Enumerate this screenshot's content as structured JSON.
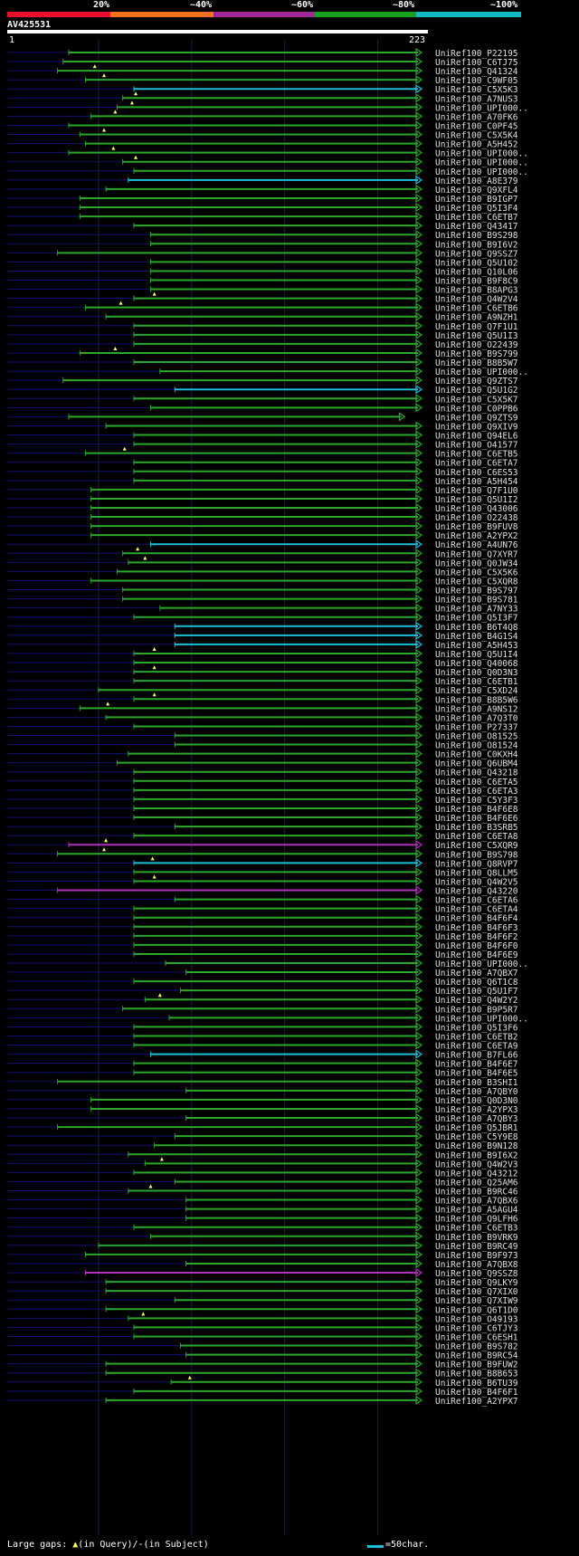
{
  "query": {
    "name": "AV425531",
    "start_label": "1",
    "end_label": "223"
  },
  "percent_labels": [
    "20%",
    "~40%",
    "~60%",
    "~80%",
    "~100%"
  ],
  "colors": {
    "20%": "#e8102c",
    "40%": "#f07020",
    "60%": "#a02898",
    "80%": "#18a018",
    "100%": "#10b8c0",
    "hit_green": "#2aa82a",
    "hit_cyan": "#19c0d8",
    "hit_magenta": "#b030b8",
    "unaligned": "#101070",
    "label": "#e0e0e0"
  },
  "footer": {
    "large_gaps": "Large gaps:",
    "query_gap": "(in Query)/",
    "subject_gap": "-(in Subject)",
    "scale": "=50char."
  },
  "chart_data": {
    "type": "alignment",
    "query_length": 223,
    "hits": [
      {
        "name": "UniRef100_P22195",
        "s": 34,
        "c": "g",
        "m": []
      },
      {
        "name": "UniRef100_C6TJ75",
        "s": 31,
        "c": "g",
        "m": []
      },
      {
        "name": "UniRef100_Q41324",
        "s": 28,
        "c": "g",
        "m": [
          48
        ]
      },
      {
        "name": "UniRef100_C9WF05",
        "s": 43,
        "c": "g",
        "m": [
          53
        ]
      },
      {
        "name": "UniRef100_C5X5K3",
        "s": 69,
        "c": "c",
        "m": []
      },
      {
        "name": "UniRef100_A7NUS3",
        "s": 63,
        "c": "g",
        "m": [
          70
        ]
      },
      {
        "name": "UniRef100_UPI000..",
        "s": 60,
        "c": "g",
        "m": [
          68
        ]
      },
      {
        "name": "UniRef100_A70FK6",
        "s": 46,
        "c": "g",
        "m": [
          59
        ]
      },
      {
        "name": "UniRef100_C0PF45",
        "s": 34,
        "c": "g",
        "m": []
      },
      {
        "name": "UniRef100_C5X5K4",
        "s": 40,
        "c": "g",
        "m": [
          53
        ]
      },
      {
        "name": "UniRef100_A5H452",
        "s": 43,
        "c": "g",
        "m": []
      },
      {
        "name": "UniRef100_UPI000..",
        "s": 34,
        "c": "g",
        "m": [
          58
        ]
      },
      {
        "name": "UniRef100_UPI000..",
        "s": 63,
        "c": "g",
        "m": [
          70
        ]
      },
      {
        "name": "UniRef100_UPI000..",
        "s": 69,
        "c": "g",
        "m": []
      },
      {
        "name": "UniRef100_A8E379",
        "s": 66,
        "c": "c",
        "m": []
      },
      {
        "name": "UniRef100_Q9XFL4",
        "s": 54,
        "c": "g",
        "m": []
      },
      {
        "name": "UniRef100_B9IGP7",
        "s": 40,
        "c": "g",
        "m": []
      },
      {
        "name": "UniRef100_Q5I3F4",
        "s": 40,
        "c": "g",
        "m": []
      },
      {
        "name": "UniRef100_C6ETB7",
        "s": 40,
        "c": "g",
        "m": []
      },
      {
        "name": "UniRef100_Q43417",
        "s": 69,
        "c": "g",
        "m": []
      },
      {
        "name": "UniRef100_B9S298",
        "s": 78,
        "c": "g",
        "m": []
      },
      {
        "name": "UniRef100_B9I6V2",
        "s": 78,
        "c": "g",
        "m": []
      },
      {
        "name": "UniRef100_Q9SSZ7",
        "s": 28,
        "c": "g",
        "m": []
      },
      {
        "name": "UniRef100_Q5U102",
        "s": 78,
        "c": "g",
        "m": []
      },
      {
        "name": "UniRef100_Q10L06",
        "s": 78,
        "c": "g",
        "m": []
      },
      {
        "name": "UniRef100_B9F8C9",
        "s": 78,
        "c": "g",
        "m": []
      },
      {
        "name": "UniRef100_B8APG3",
        "s": 78,
        "c": "g",
        "m": []
      },
      {
        "name": "UniRef100_Q4W2V4",
        "s": 69,
        "c": "g",
        "m": [
          80
        ]
      },
      {
        "name": "UniRef100_C6ETB6",
        "s": 43,
        "c": "g",
        "m": [
          62
        ]
      },
      {
        "name": "UniRef100_A9NZH1",
        "s": 54,
        "c": "g",
        "m": []
      },
      {
        "name": "UniRef100_Q7F1U1",
        "s": 69,
        "c": "g",
        "m": []
      },
      {
        "name": "UniRef100_Q5U1I3",
        "s": 69,
        "c": "g",
        "m": []
      },
      {
        "name": "UniRef100_O22439",
        "s": 69,
        "c": "g",
        "m": []
      },
      {
        "name": "UniRef100_B9S799",
        "s": 40,
        "c": "g",
        "m": [
          59
        ]
      },
      {
        "name": "UniRef100_B8B5W7",
        "s": 69,
        "c": "g",
        "m": []
      },
      {
        "name": "UniRef100_UPI000..",
        "s": 83,
        "c": "g",
        "m": []
      },
      {
        "name": "UniRef100_Q9ZTS7",
        "s": 31,
        "c": "g",
        "m": []
      },
      {
        "name": "UniRef100_Q5U1G2",
        "s": 91,
        "c": "c",
        "m": []
      },
      {
        "name": "UniRef100_C5X5K7",
        "s": 69,
        "c": "g",
        "m": []
      },
      {
        "name": "UniRef100_C0PPB6",
        "s": 78,
        "c": "g",
        "m": []
      },
      {
        "name": "UniRef100_Q9ZTS9",
        "s": 34,
        "c": "g",
        "m": [],
        "e": 214
      },
      {
        "name": "UniRef100_Q9XIV9",
        "s": 54,
        "c": "g",
        "m": []
      },
      {
        "name": "UniRef100_Q94EL6",
        "s": 69,
        "c": "g",
        "m": []
      },
      {
        "name": "UniRef100_O41577",
        "s": 69,
        "c": "g",
        "m": []
      },
      {
        "name": "UniRef100_C6ETB5",
        "s": 43,
        "c": "g",
        "m": [
          64
        ]
      },
      {
        "name": "UniRef100_C6ETA7",
        "s": 69,
        "c": "g",
        "m": []
      },
      {
        "name": "UniRef100_C6ES53",
        "s": 69,
        "c": "g",
        "m": []
      },
      {
        "name": "UniRef100_A5H454",
        "s": 69,
        "c": "g",
        "m": []
      },
      {
        "name": "UniRef100_Q7F1U0",
        "s": 46,
        "c": "g",
        "m": []
      },
      {
        "name": "UniRef100_Q5U1I2",
        "s": 46,
        "c": "g",
        "m": []
      },
      {
        "name": "UniRef100_Q43006",
        "s": 46,
        "c": "g",
        "m": []
      },
      {
        "name": "UniRef100_O22438",
        "s": 46,
        "c": "g",
        "m": []
      },
      {
        "name": "UniRef100_B9FUV8",
        "s": 46,
        "c": "g",
        "m": []
      },
      {
        "name": "UniRef100_A2YPX2",
        "s": 46,
        "c": "g",
        "m": []
      },
      {
        "name": "UniRef100_A4UN76",
        "s": 78,
        "c": "c",
        "m": []
      },
      {
        "name": "UniRef100_Q7XYR7",
        "s": 63,
        "c": "g",
        "m": [
          71
        ]
      },
      {
        "name": "UniRef100_Q0JW34",
        "s": 66,
        "c": "g",
        "m": [
          75
        ]
      },
      {
        "name": "UniRef100_C5X5K6",
        "s": 60,
        "c": "g",
        "m": []
      },
      {
        "name": "UniRef100_C5XQR8",
        "s": 46,
        "c": "g",
        "m": []
      },
      {
        "name": "UniRef100_B9S797",
        "s": 63,
        "c": "g",
        "m": []
      },
      {
        "name": "UniRef100_B9S781",
        "s": 63,
        "c": "g",
        "m": []
      },
      {
        "name": "UniRef100_A7NY33",
        "s": 83,
        "c": "g",
        "m": []
      },
      {
        "name": "UniRef100_Q5I3F7",
        "s": 69,
        "c": "g",
        "m": []
      },
      {
        "name": "UniRef100_B6T4Q8",
        "s": 91,
        "c": "c",
        "m": []
      },
      {
        "name": "UniRef100_B4G1S4",
        "s": 91,
        "c": "c",
        "m": []
      },
      {
        "name": "UniRef100_A5H453",
        "s": 91,
        "c": "c",
        "m": []
      },
      {
        "name": "UniRef100_Q5U1I4",
        "s": 69,
        "c": "g",
        "m": [
          80
        ]
      },
      {
        "name": "UniRef100_Q40068",
        "s": 69,
        "c": "g",
        "m": []
      },
      {
        "name": "UniRef100_Q0D3N3",
        "s": 69,
        "c": "g",
        "m": [
          80
        ]
      },
      {
        "name": "UniRef100_C6ETB1",
        "s": 69,
        "c": "g",
        "m": []
      },
      {
        "name": "UniRef100_C5XD24",
        "s": 50,
        "c": "g",
        "m": []
      },
      {
        "name": "UniRef100_B8B5W6",
        "s": 69,
        "c": "g",
        "m": [
          80
        ]
      },
      {
        "name": "UniRef100_A9NS12",
        "s": 40,
        "c": "g",
        "m": [
          55
        ]
      },
      {
        "name": "UniRef100_A7Q3T0",
        "s": 54,
        "c": "g",
        "m": []
      },
      {
        "name": "UniRef100_P27337",
        "s": 69,
        "c": "g",
        "m": []
      },
      {
        "name": "UniRef100_O81525",
        "s": 91,
        "c": "g",
        "m": []
      },
      {
        "name": "UniRef100_O81524",
        "s": 91,
        "c": "g",
        "m": []
      },
      {
        "name": "UniRef100_C0KXH4",
        "s": 66,
        "c": "g",
        "m": []
      },
      {
        "name": "UniRef100_Q6UBM4",
        "s": 60,
        "c": "g",
        "m": []
      },
      {
        "name": "UniRef100_Q43218",
        "s": 69,
        "c": "g",
        "m": []
      },
      {
        "name": "UniRef100_C6ETA5",
        "s": 69,
        "c": "g",
        "m": []
      },
      {
        "name": "UniRef100_C6ETA3",
        "s": 69,
        "c": "g",
        "m": []
      },
      {
        "name": "UniRef100_C5Y3F3",
        "s": 69,
        "c": "g",
        "m": []
      },
      {
        "name": "UniRef100_B4F6E8",
        "s": 69,
        "c": "g",
        "m": []
      },
      {
        "name": "UniRef100_B4F6E6",
        "s": 69,
        "c": "g",
        "m": []
      },
      {
        "name": "UniRef100_B3SRB5",
        "s": 91,
        "c": "g",
        "m": []
      },
      {
        "name": "UniRef100_C6ETA8",
        "s": 69,
        "c": "g",
        "m": []
      },
      {
        "name": "UniRef100_C5XQR9",
        "s": 34,
        "c": "p",
        "m": [
          54
        ]
      },
      {
        "name": "UniRef100_B9S798",
        "s": 28,
        "c": "g",
        "m": [
          53
        ]
      },
      {
        "name": "UniRef100_Q8RVP7",
        "s": 69,
        "c": "c",
        "m": [
          79
        ]
      },
      {
        "name": "UniRef100_Q8LLM5",
        "s": 69,
        "c": "g",
        "m": []
      },
      {
        "name": "UniRef100_Q4W2V5",
        "s": 69,
        "c": "g",
        "m": [
          80
        ]
      },
      {
        "name": "UniRef100_Q43220",
        "s": 28,
        "c": "p",
        "m": []
      },
      {
        "name": "UniRef100_C6ETA6",
        "s": 91,
        "c": "g",
        "m": []
      },
      {
        "name": "UniRef100_C6ETA4",
        "s": 69,
        "c": "g",
        "m": []
      },
      {
        "name": "UniRef100_B4F6F4",
        "s": 69,
        "c": "g",
        "m": []
      },
      {
        "name": "UniRef100_B4F6F3",
        "s": 69,
        "c": "g",
        "m": []
      },
      {
        "name": "UniRef100_B4F6F2",
        "s": 69,
        "c": "g",
        "m": []
      },
      {
        "name": "UniRef100_B4F6F0",
        "s": 69,
        "c": "g",
        "m": []
      },
      {
        "name": "UniRef100_B4F6E9",
        "s": 69,
        "c": "g",
        "m": []
      },
      {
        "name": "UniRef100_UPI000..",
        "s": 86,
        "c": "g",
        "m": []
      },
      {
        "name": "UniRef100_A7QBX7",
        "s": 97,
        "c": "g",
        "m": []
      },
      {
        "name": "UniRef100_Q6T1C8",
        "s": 69,
        "c": "g",
        "m": []
      },
      {
        "name": "UniRef100_Q5U1F7",
        "s": 94,
        "c": "g",
        "m": []
      },
      {
        "name": "UniRef100_Q4W2Y2",
        "s": 75,
        "c": "g",
        "m": [
          83
        ]
      },
      {
        "name": "UniRef100_B9P5R7",
        "s": 63,
        "c": "g",
        "m": []
      },
      {
        "name": "UniRef100_UPI000..",
        "s": 88,
        "c": "g",
        "m": []
      },
      {
        "name": "UniRef100_Q5I3F6",
        "s": 69,
        "c": "g",
        "m": []
      },
      {
        "name": "UniRef100_C6ETB2",
        "s": 69,
        "c": "g",
        "m": []
      },
      {
        "name": "UniRef100_C6ETA9",
        "s": 69,
        "c": "g",
        "m": []
      },
      {
        "name": "UniRef100_B7FL66",
        "s": 78,
        "c": "c",
        "m": []
      },
      {
        "name": "UniRef100_B4F6E7",
        "s": 69,
        "c": "g",
        "m": []
      },
      {
        "name": "UniRef100_B4F6E5",
        "s": 69,
        "c": "g",
        "m": []
      },
      {
        "name": "UniRef100_B3SHI1",
        "s": 28,
        "c": "g",
        "m": []
      },
      {
        "name": "UniRef100_A7QBY0",
        "s": 97,
        "c": "g",
        "m": []
      },
      {
        "name": "UniRef100_Q0D3N0",
        "s": 46,
        "c": "g",
        "m": []
      },
      {
        "name": "UniRef100_A2YPX3",
        "s": 46,
        "c": "g",
        "m": []
      },
      {
        "name": "UniRef100_A7QBY3",
        "s": 97,
        "c": "g",
        "m": []
      },
      {
        "name": "UniRef100_Q5JBR1",
        "s": 28,
        "c": "g",
        "m": []
      },
      {
        "name": "UniRef100_C5Y9E8",
        "s": 91,
        "c": "g",
        "m": []
      },
      {
        "name": "UniRef100_B9N128",
        "s": 80,
        "c": "g",
        "m": []
      },
      {
        "name": "UniRef100_B9I6X2",
        "s": 66,
        "c": "g",
        "m": []
      },
      {
        "name": "UniRef100_Q4W2V3",
        "s": 75,
        "c": "g",
        "m": [
          84
        ]
      },
      {
        "name": "UniRef100_Q43212",
        "s": 69,
        "c": "g",
        "m": []
      },
      {
        "name": "UniRef100_Q25AM6",
        "s": 91,
        "c": "g",
        "m": []
      },
      {
        "name": "UniRef100_B9RC46",
        "s": 66,
        "c": "g",
        "m": [
          78
        ]
      },
      {
        "name": "UniRef100_A7QBX6",
        "s": 97,
        "c": "g",
        "m": []
      },
      {
        "name": "UniRef100_A5AGU4",
        "s": 97,
        "c": "g",
        "m": []
      },
      {
        "name": "UniRef100_Q9LFH6",
        "s": 97,
        "c": "g",
        "m": []
      },
      {
        "name": "UniRef100_C6ETB3",
        "s": 69,
        "c": "g",
        "m": []
      },
      {
        "name": "UniRef100_B9VRK9",
        "s": 78,
        "c": "g",
        "m": []
      },
      {
        "name": "UniRef100_B9RC49",
        "s": 50,
        "c": "g",
        "m": []
      },
      {
        "name": "UniRef100_B9F973",
        "s": 43,
        "c": "g",
        "m": []
      },
      {
        "name": "UniRef100_A7QBX8",
        "s": 97,
        "c": "g",
        "m": []
      },
      {
        "name": "UniRef100_Q9SSZ8",
        "s": 43,
        "c": "p",
        "m": []
      },
      {
        "name": "UniRef100_Q9LKY9",
        "s": 54,
        "c": "g",
        "m": []
      },
      {
        "name": "UniRef100_Q7XIX0",
        "s": 54,
        "c": "g",
        "m": []
      },
      {
        "name": "UniRef100_Q7XIW9",
        "s": 91,
        "c": "g",
        "m": []
      },
      {
        "name": "UniRef100_Q6T1D0",
        "s": 54,
        "c": "g",
        "m": []
      },
      {
        "name": "UniRef100_O49193",
        "s": 66,
        "c": "g",
        "m": [
          74
        ]
      },
      {
        "name": "UniRef100_C6TJY3",
        "s": 69,
        "c": "g",
        "m": []
      },
      {
        "name": "UniRef100_C6ESH1",
        "s": 69,
        "c": "g",
        "m": []
      },
      {
        "name": "UniRef100_B9S782",
        "s": 94,
        "c": "g",
        "m": []
      },
      {
        "name": "UniRef100_B9RC54",
        "s": 97,
        "c": "g",
        "m": []
      },
      {
        "name": "UniRef100_B9FUW2",
        "s": 54,
        "c": "g",
        "m": []
      },
      {
        "name": "UniRef100_B8B653",
        "s": 54,
        "c": "g",
        "m": []
      },
      {
        "name": "UniRef100_B6TU39",
        "s": 89,
        "c": "g",
        "m": [
          99
        ]
      },
      {
        "name": "UniRef100_B4F6F1",
        "s": 69,
        "c": "g",
        "m": []
      },
      {
        "name": "UniRef100_A2YPX7",
        "s": 54,
        "c": "g",
        "m": []
      }
    ]
  }
}
